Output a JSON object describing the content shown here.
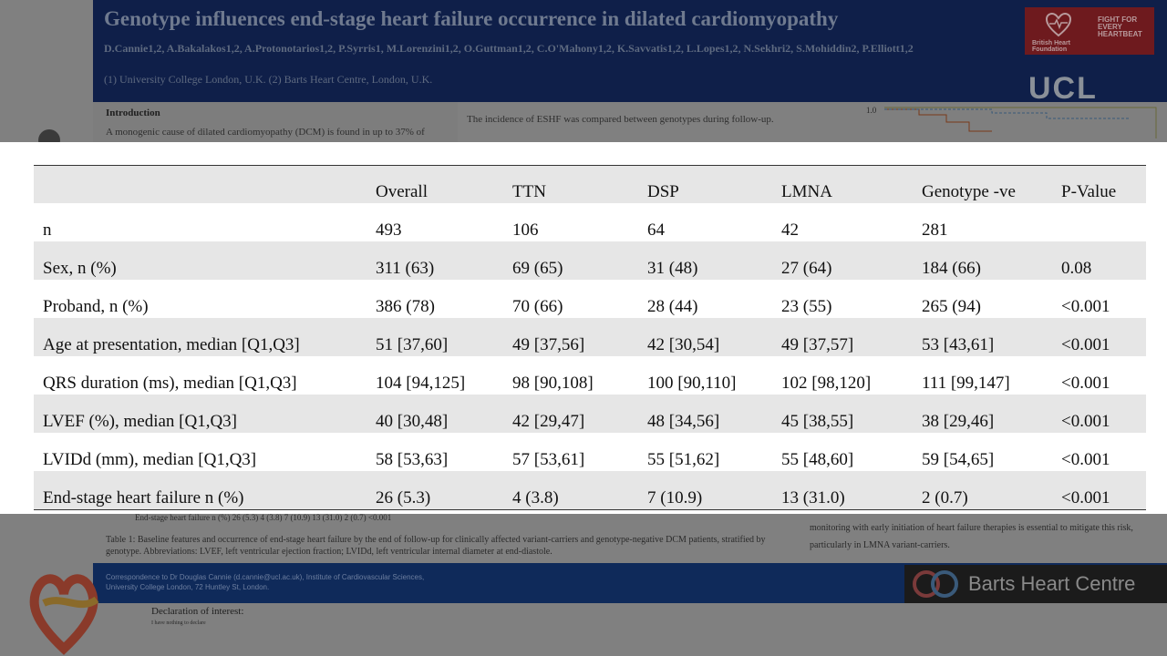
{
  "poster": {
    "title": "Genotype influences end-stage heart failure occurrence in dilated cardiomyopathy",
    "authors": "D.Cannie1,2, A.Bakalakos1,2, A.Protonotarios1,2, P.Syrris1, M.Lorenzini1,2, O.Guttman1,2, C.O'Mahony1,2, K.Savvatis1,2, L.Lopes1,2, N.Sekhri2, S.Mohiddin2, P.Elliott1,2",
    "affiliations": "(1) University College London, U.K.  (2) Barts Heart Centre, London, U.K.",
    "bhf_logo_left": "British Heart Foundation",
    "bhf_logo_right": "FIGHT FOR EVERY HEARTBEAT",
    "ucl_logo": "UCL",
    "intro_heading": "Introduction",
    "intro_text": "A monogenic cause of dilated cardiomyopathy (DCM) is found in up to 37% of",
    "middle_text": "The incidence of ESHF was compared between genotypes during follow-up.",
    "km_axis_label": "1.0",
    "below_row_text": "End-stage heart failure n (%)        26 (5.3)           4 (3.8)            7 (10.9)          13 (31.0)          2 (0.7)          <0.001",
    "caption": "Table 1:  Baseline features and occurrence of end-stage heart failure by the end of follow-up for clinically affected variant-carriers and genotype-negative DCM patients, stratified by genotype.  Abbreviations: LVEF, left ventricular ejection fraction; LVIDd,  left ventricular internal diameter at end-diastole.",
    "right_text": "monitoring with early initiation of heart failure therapies is essential to mitigate this risk, particularly in LMNA variant-carriers.",
    "footer_text": "Correspondence to Dr Douglas Cannie (d.cannie@ucl.ac.uk), Institute of Cardiovascular Sciences, University College London, 72 Huntley St, London.",
    "barts_logo": "Barts Heart Centre",
    "declaration_heading": "Declaration of interest:",
    "declaration_text": "I have nothing to declare"
  },
  "table": {
    "headers": [
      "",
      "Overall",
      "TTN",
      "DSP",
      "LMNA",
      "Genotype -ve",
      "P-Value"
    ],
    "rows": [
      [
        "n",
        "493",
        "106",
        "64",
        "42",
        "281",
        ""
      ],
      [
        "Sex, n (%)",
        "311 (63)",
        "69 (65)",
        "31 (48)",
        "27 (64)",
        "184 (66)",
        "0.08"
      ],
      [
        "Proband, n (%)",
        "386 (78)",
        "70 (66)",
        "28 (44)",
        "23 (55)",
        "265 (94)",
        "<0.001"
      ],
      [
        "Age at presentation, median [Q1,Q3]",
        "51 [37,60]",
        "49 [37,56]",
        "42 [30,54]",
        "49 [37,57]",
        "53 [43,61]",
        "<0.001"
      ],
      [
        "QRS duration (ms), median [Q1,Q3]",
        "104 [94,125]",
        "98 [90,108]",
        "100 [90,110]",
        "102 [98,120]",
        "111 [99,147]",
        "<0.001"
      ],
      [
        "LVEF (%), median [Q1,Q3]",
        "40 [30,48]",
        "42 [29,47]",
        "48 [34,56]",
        "45 [38,55]",
        "38 [29,46]",
        "<0.001"
      ],
      [
        "LVIDd  (mm), median [Q1,Q3]",
        "58 [53,63]",
        "57 [53,61]",
        "55 [51,62]",
        "55 [48,60]",
        "59 [54,65]",
        "<0.001"
      ],
      [
        "End-stage heart failure n (%)",
        "26 (5.3)",
        "4 (3.8)",
        "7 (10.9)",
        "13 (31.0)",
        "2 (0.7)",
        "<0.001"
      ]
    ]
  },
  "colors": {
    "header_navy": "#0f1f49",
    "row_shade": "#e6e6e6",
    "bhf_red": "#6e1a1e"
  }
}
